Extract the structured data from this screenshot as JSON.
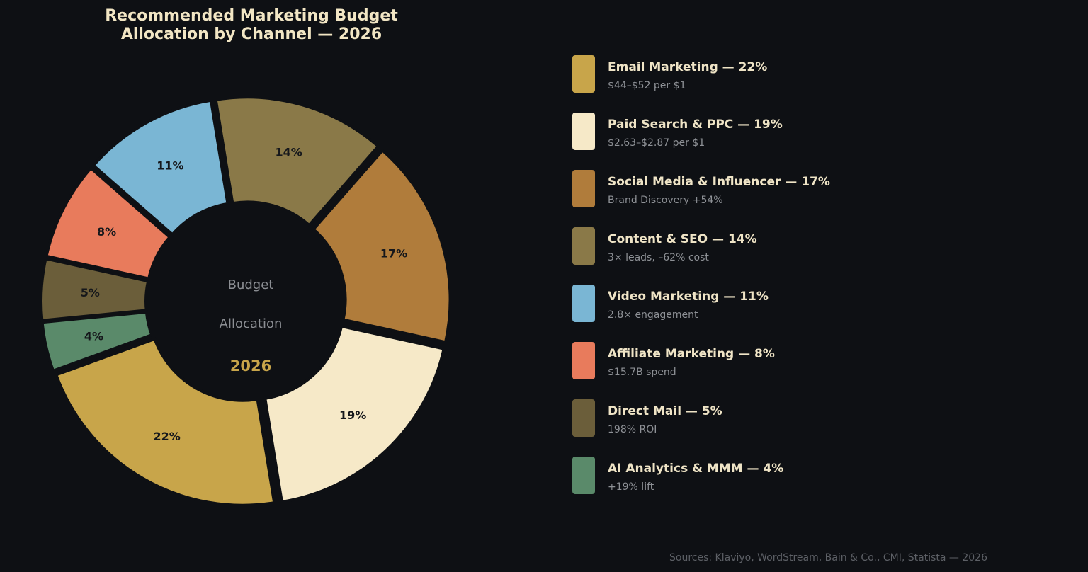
{
  "chart_data": {
    "type": "pie",
    "title": [
      "Recommended Marketing Budget",
      "Allocation by Channel — 2026"
    ],
    "center_label": [
      "Budget",
      "Allocation",
      "2026"
    ],
    "legend_placement": "right",
    "slices": [
      {
        "name": "Email Marketing",
        "value": 22,
        "label": "22%",
        "legend_label": "Email Marketing  —  22%",
        "note": "$44–$52 per $1",
        "color": "#c8a54a"
      },
      {
        "name": "Paid Search & PPC",
        "value": 19,
        "label": "19%",
        "legend_label": "Paid Search & PPC  —  19%",
        "note": "$2.63–$2.87 per $1",
        "color": "#f6e9c8"
      },
      {
        "name": "Social Media & Influencer",
        "value": 17,
        "label": "17%",
        "legend_label": "Social Media & Influencer  —  17%",
        "note": "Brand Discovery +54%",
        "color": "#b07c3b"
      },
      {
        "name": "Content & SEO",
        "value": 14,
        "label": "14%",
        "legend_label": "Content & SEO  —  14%",
        "note": "3× leads, –62% cost",
        "color": "#8a7948"
      },
      {
        "name": "Video Marketing",
        "value": 11,
        "label": "11%",
        "legend_label": "Video Marketing  —  11%",
        "note": "2.8× engagement",
        "color": "#7ab6d4"
      },
      {
        "name": "Affiliate Marketing",
        "value": 8,
        "label": "8%",
        "legend_label": "Affiliate Marketing  —  8%",
        "note": "$15.7B spend",
        "color": "#e87b5c"
      },
      {
        "name": "Direct Mail",
        "value": 5,
        "label": "5%",
        "legend_label": "Direct Mail  —  5%",
        "note": "198% ROI",
        "color": "#6b5e3a"
      },
      {
        "name": "AI Analytics & MMM",
        "value": 4,
        "label": "4%",
        "legend_label": "AI Analytics & MMM  —  4%",
        "note": "+19% lift",
        "color": "#5a8a6a"
      }
    ],
    "source": "Sources: Klaviyo, WordStream, Bain & Co., CMI, Statista — 2026"
  }
}
